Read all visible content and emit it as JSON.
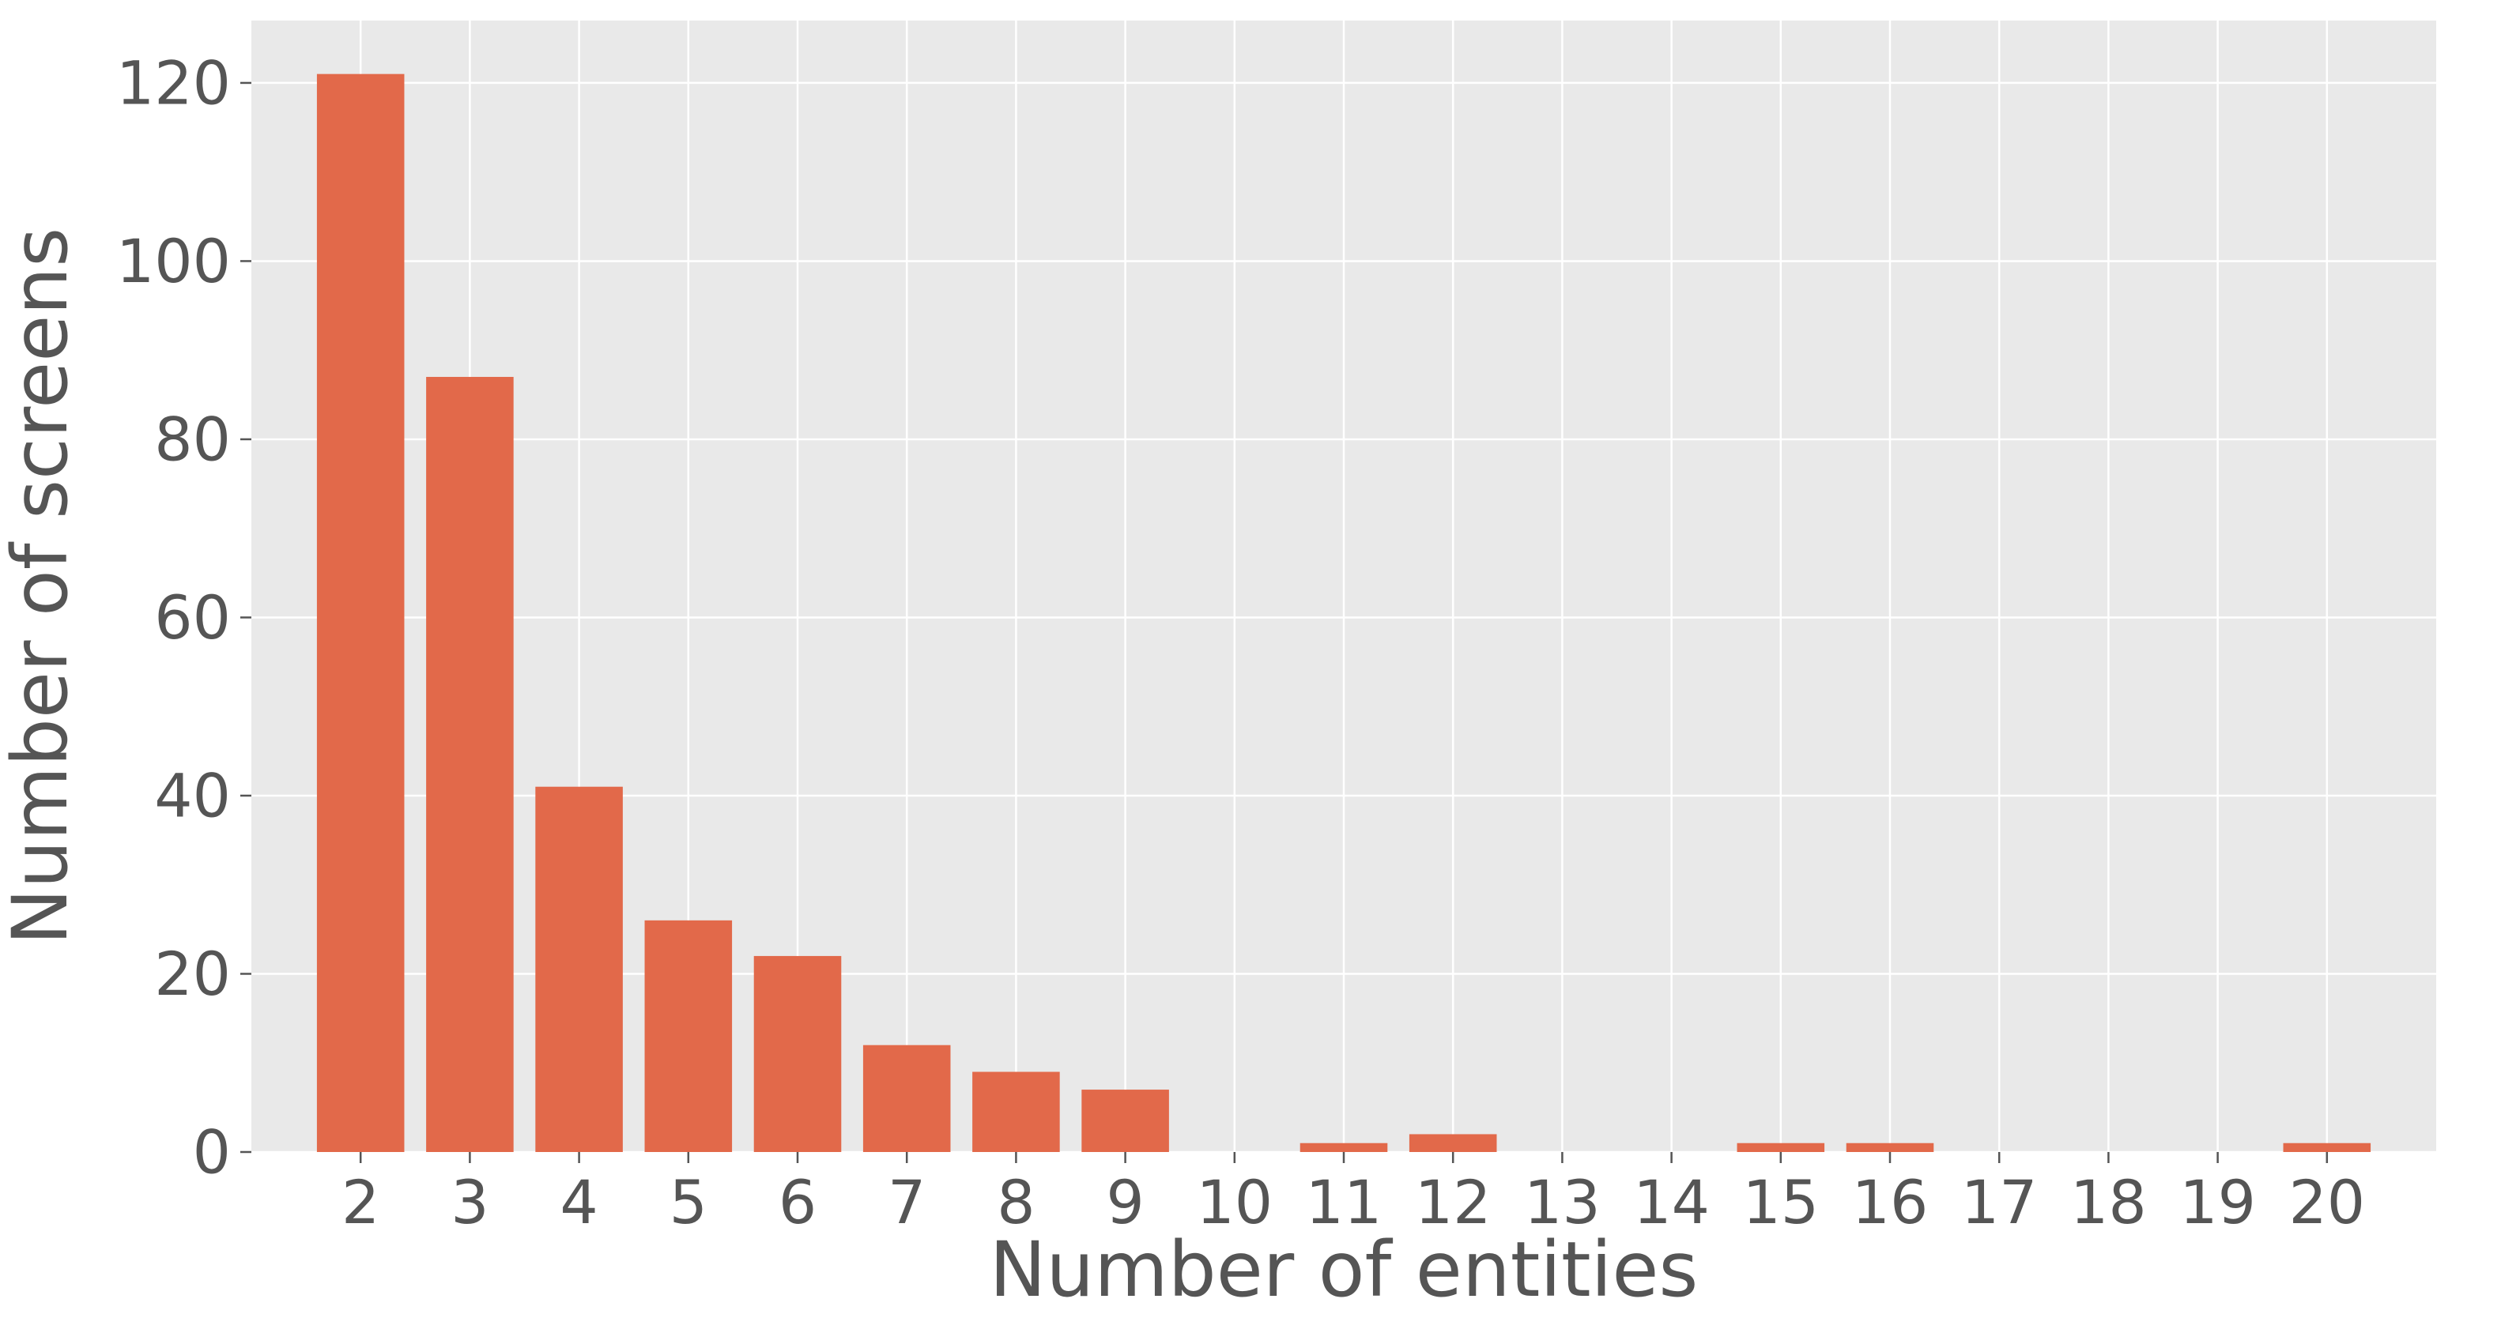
{
  "chart_data": {
    "type": "bar",
    "title": "",
    "xlabel": "Number of entities",
    "ylabel": "Number of screens",
    "categories": [
      "2",
      "3",
      "4",
      "5",
      "6",
      "7",
      "8",
      "9",
      "10",
      "11",
      "12",
      "13",
      "14",
      "15",
      "16",
      "17",
      "18",
      "19",
      "20"
    ],
    "values": [
      121,
      87,
      41,
      26,
      22,
      12,
      9,
      7,
      0,
      1,
      2,
      0,
      0,
      1,
      1,
      0,
      0,
      0,
      1
    ],
    "ylim": [
      0,
      127
    ],
    "yticks": [
      0,
      20,
      40,
      60,
      80,
      100,
      120
    ],
    "grid": true,
    "colors": {
      "bar": "#E2694A",
      "plot_background": "#E9E9E9",
      "grid": "#FFFFFF",
      "text": "#555555"
    }
  }
}
